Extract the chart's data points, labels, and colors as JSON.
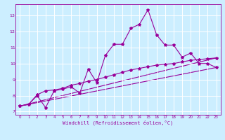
{
  "xlabel": "Windchill (Refroidissement éolien,°C)",
  "bg_color": "#cceeff",
  "line_color": "#990099",
  "grid_color": "#ffffff",
  "xlim": [
    -0.5,
    23.5
  ],
  "ylim": [
    6.8,
    13.7
  ],
  "yticks": [
    7,
    8,
    9,
    10,
    11,
    12,
    13
  ],
  "xticks": [
    0,
    1,
    2,
    3,
    4,
    5,
    6,
    7,
    8,
    9,
    10,
    11,
    12,
    13,
    14,
    15,
    16,
    17,
    18,
    19,
    20,
    21,
    22,
    23
  ],
  "line1_x": [
    0,
    1,
    2,
    3,
    4,
    5,
    6,
    7,
    8,
    9,
    10,
    11,
    12,
    13,
    14,
    15,
    16,
    17,
    18,
    19,
    20,
    21,
    22,
    23
  ],
  "line1_y": [
    7.35,
    7.45,
    8.0,
    7.25,
    8.3,
    8.4,
    8.55,
    8.15,
    9.65,
    8.8,
    10.5,
    11.2,
    11.2,
    12.2,
    12.45,
    13.35,
    11.8,
    11.15,
    11.15,
    10.4,
    10.65,
    10.0,
    10.0,
    9.75
  ],
  "line2_x": [
    0,
    1,
    2,
    3,
    4,
    5,
    6,
    7,
    8,
    9,
    10,
    11,
    12,
    13,
    14,
    15,
    16,
    17,
    18,
    19,
    20,
    21,
    22,
    23
  ],
  "line2_y": [
    7.35,
    7.45,
    8.05,
    8.3,
    8.35,
    8.45,
    8.65,
    8.75,
    8.9,
    9.0,
    9.15,
    9.3,
    9.45,
    9.6,
    9.7,
    9.8,
    9.9,
    9.95,
    10.0,
    10.1,
    10.2,
    10.25,
    10.3,
    10.35
  ],
  "line3_y_start": 7.35,
  "line3_y_end": 9.75,
  "line4_y_start": 7.35,
  "line4_y_end": 10.35
}
